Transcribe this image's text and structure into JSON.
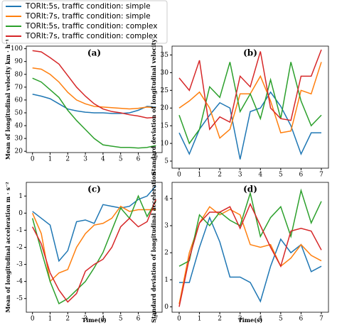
{
  "legend": {
    "entries": [
      {
        "name": "TORlt:5s, traffic condition: simple",
        "color": "#1f77b4"
      },
      {
        "name": "TORlt:7s, traffic condition: simple",
        "color": "#ff7f0e"
      },
      {
        "name": "TORlt:5s, traffic condition: complex",
        "color": "#2ca02c"
      },
      {
        "name": "TORlt:7s, traffic condition: complex",
        "color": "#d62728"
      }
    ]
  },
  "chart_data": [
    {
      "type": "line",
      "title": "(a)",
      "y_label": "Mean of longitudinal velocity km · h⁻¹",
      "x": [
        0,
        0.5,
        1,
        1.5,
        2,
        2.5,
        3,
        3.5,
        4,
        4.5,
        5,
        5.5,
        6,
        6.5,
        7
      ],
      "xlim": [
        -0.35,
        7.35
      ],
      "xticks": [
        0,
        1,
        2,
        3,
        4,
        5,
        6,
        7
      ],
      "ylim": [
        19,
        102
      ],
      "yticks": [
        20,
        30,
        40,
        50,
        60,
        70,
        80,
        90,
        100
      ],
      "series": [
        {
          "values": [
            64.5,
            63,
            61,
            57,
            53,
            51.5,
            50.5,
            50,
            50,
            49.5,
            49.5,
            50,
            52,
            55,
            54.5
          ]
        },
        {
          "values": [
            85,
            84,
            80,
            74,
            66,
            60,
            57,
            55,
            54.5,
            54,
            53.5,
            53,
            53.5,
            54.5,
            54
          ]
        },
        {
          "values": [
            77,
            74,
            68,
            62,
            52,
            44,
            37,
            30,
            25,
            24,
            23,
            23,
            22.5,
            23,
            24.5
          ]
        },
        {
          "values": [
            98.5,
            97.5,
            93,
            88,
            79,
            70,
            63,
            57,
            53,
            51,
            50,
            48.5,
            47.5,
            46,
            46.5
          ]
        }
      ]
    },
    {
      "type": "line",
      "title": "(b)",
      "y_label": "Standard deviation of longitudinal velocity",
      "x": [
        0,
        0.5,
        1,
        1.5,
        2,
        2.5,
        3,
        3.5,
        4,
        4.5,
        5,
        5.5,
        6,
        6.5,
        7
      ],
      "xlim": [
        -0.35,
        7.35
      ],
      "xticks": [
        0,
        1,
        2,
        3,
        4,
        5,
        6,
        7
      ],
      "ylim": [
        3,
        37.5
      ],
      "yticks": [
        5,
        10,
        15,
        20,
        25,
        30,
        35
      ],
      "series": [
        {
          "values": [
            13,
            7,
            14,
            18,
            21.5,
            20,
            5.5,
            19,
            20,
            24.5,
            20.5,
            15,
            7,
            13,
            13
          ]
        },
        {
          "values": [
            20,
            22,
            24.5,
            20,
            11.5,
            14,
            24,
            24,
            29,
            22,
            13,
            13.5,
            25,
            24,
            33
          ]
        },
        {
          "values": [
            18,
            10,
            14,
            26,
            23,
            33,
            19,
            24,
            17,
            28,
            17,
            33,
            22,
            15,
            18
          ]
        },
        {
          "values": [
            28.5,
            25,
            33.5,
            14,
            17.5,
            16,
            29,
            26,
            36,
            20,
            17,
            16.5,
            29,
            29,
            36.5
          ]
        }
      ]
    },
    {
      "type": "line",
      "title": "(c)",
      "y_label": "Mean of longitudinal acceleration m · s⁻²",
      "x_label": "Time(s)",
      "x": [
        0,
        0.5,
        1,
        1.5,
        2,
        2.5,
        3,
        3.5,
        4,
        4.5,
        5,
        5.5,
        6,
        6.5,
        7
      ],
      "xlim": [
        -0.35,
        7.35
      ],
      "xticks": [
        0,
        1,
        2,
        3,
        4,
        5,
        6,
        7
      ],
      "ylim": [
        -5.8,
        1.8
      ],
      "yticks": [
        -5,
        -4,
        -3,
        -2,
        -1,
        0,
        1
      ],
      "series": [
        {
          "values": [
            0.1,
            -0.3,
            -0.7,
            -2.8,
            -2.2,
            -0.5,
            -0.4,
            -0.6,
            0.5,
            0.4,
            0.3,
            0.4,
            0.8,
            1,
            1.6
          ]
        },
        {
          "values": [
            0,
            -1.2,
            -4,
            -3.5,
            -3.3,
            -2,
            -1.2,
            -0.7,
            -0.6,
            -0.3,
            0.4,
            0.1,
            0.2,
            0.2,
            0.2
          ]
        },
        {
          "values": [
            -0.3,
            -2.2,
            -4,
            -5.3,
            -5,
            -4.5,
            -4,
            -3.2,
            -2.3,
            -1,
            0.3,
            -0.3,
            1,
            -0.2,
            0.7
          ]
        },
        {
          "values": [
            -0.8,
            -1.8,
            -3.5,
            -4.5,
            -5.2,
            -4.7,
            -3.4,
            -3,
            -2.7,
            -2,
            -0.8,
            -0.3,
            -0.8,
            -0.5,
            0.8
          ]
        }
      ]
    },
    {
      "type": "line",
      "title": "(d)",
      "y_label": "Standard deviation of longitudinal acceleration",
      "x_label": "Time(s)",
      "x": [
        0,
        0.5,
        1,
        1.5,
        2,
        2.5,
        3,
        3.5,
        4,
        4.5,
        5,
        5.5,
        6,
        6.5,
        7
      ],
      "xlim": [
        -0.35,
        7.35
      ],
      "xticks": [
        0,
        1,
        2,
        3,
        4,
        5,
        6,
        7
      ],
      "ylim": [
        -0.2,
        4.6
      ],
      "yticks": [
        0,
        1,
        2,
        3,
        4
      ],
      "series": [
        {
          "values": [
            0.9,
            0.9,
            2.2,
            3.3,
            2.4,
            1.1,
            1.1,
            0.9,
            0.2,
            1.5,
            2.5,
            2,
            2.3,
            1.3,
            1.5
          ]
        },
        {
          "values": [
            0.1,
            2,
            3.1,
            3.7,
            3.4,
            3.6,
            3.4,
            2.3,
            2.2,
            2.3,
            1.5,
            1.8,
            2.3,
            1.9,
            1.7
          ]
        },
        {
          "values": [
            1.5,
            1.7,
            3.4,
            3,
            3.5,
            3.2,
            3,
            4.2,
            2.6,
            3.3,
            3.7,
            2.6,
            4.3,
            3.1,
            3.9
          ]
        },
        {
          "values": [
            0,
            1.8,
            3.1,
            3.5,
            3.5,
            3.7,
            2.9,
            3.8,
            3,
            2.2,
            1.5,
            2.8,
            2.9,
            2.8,
            2.1
          ]
        }
      ]
    }
  ]
}
